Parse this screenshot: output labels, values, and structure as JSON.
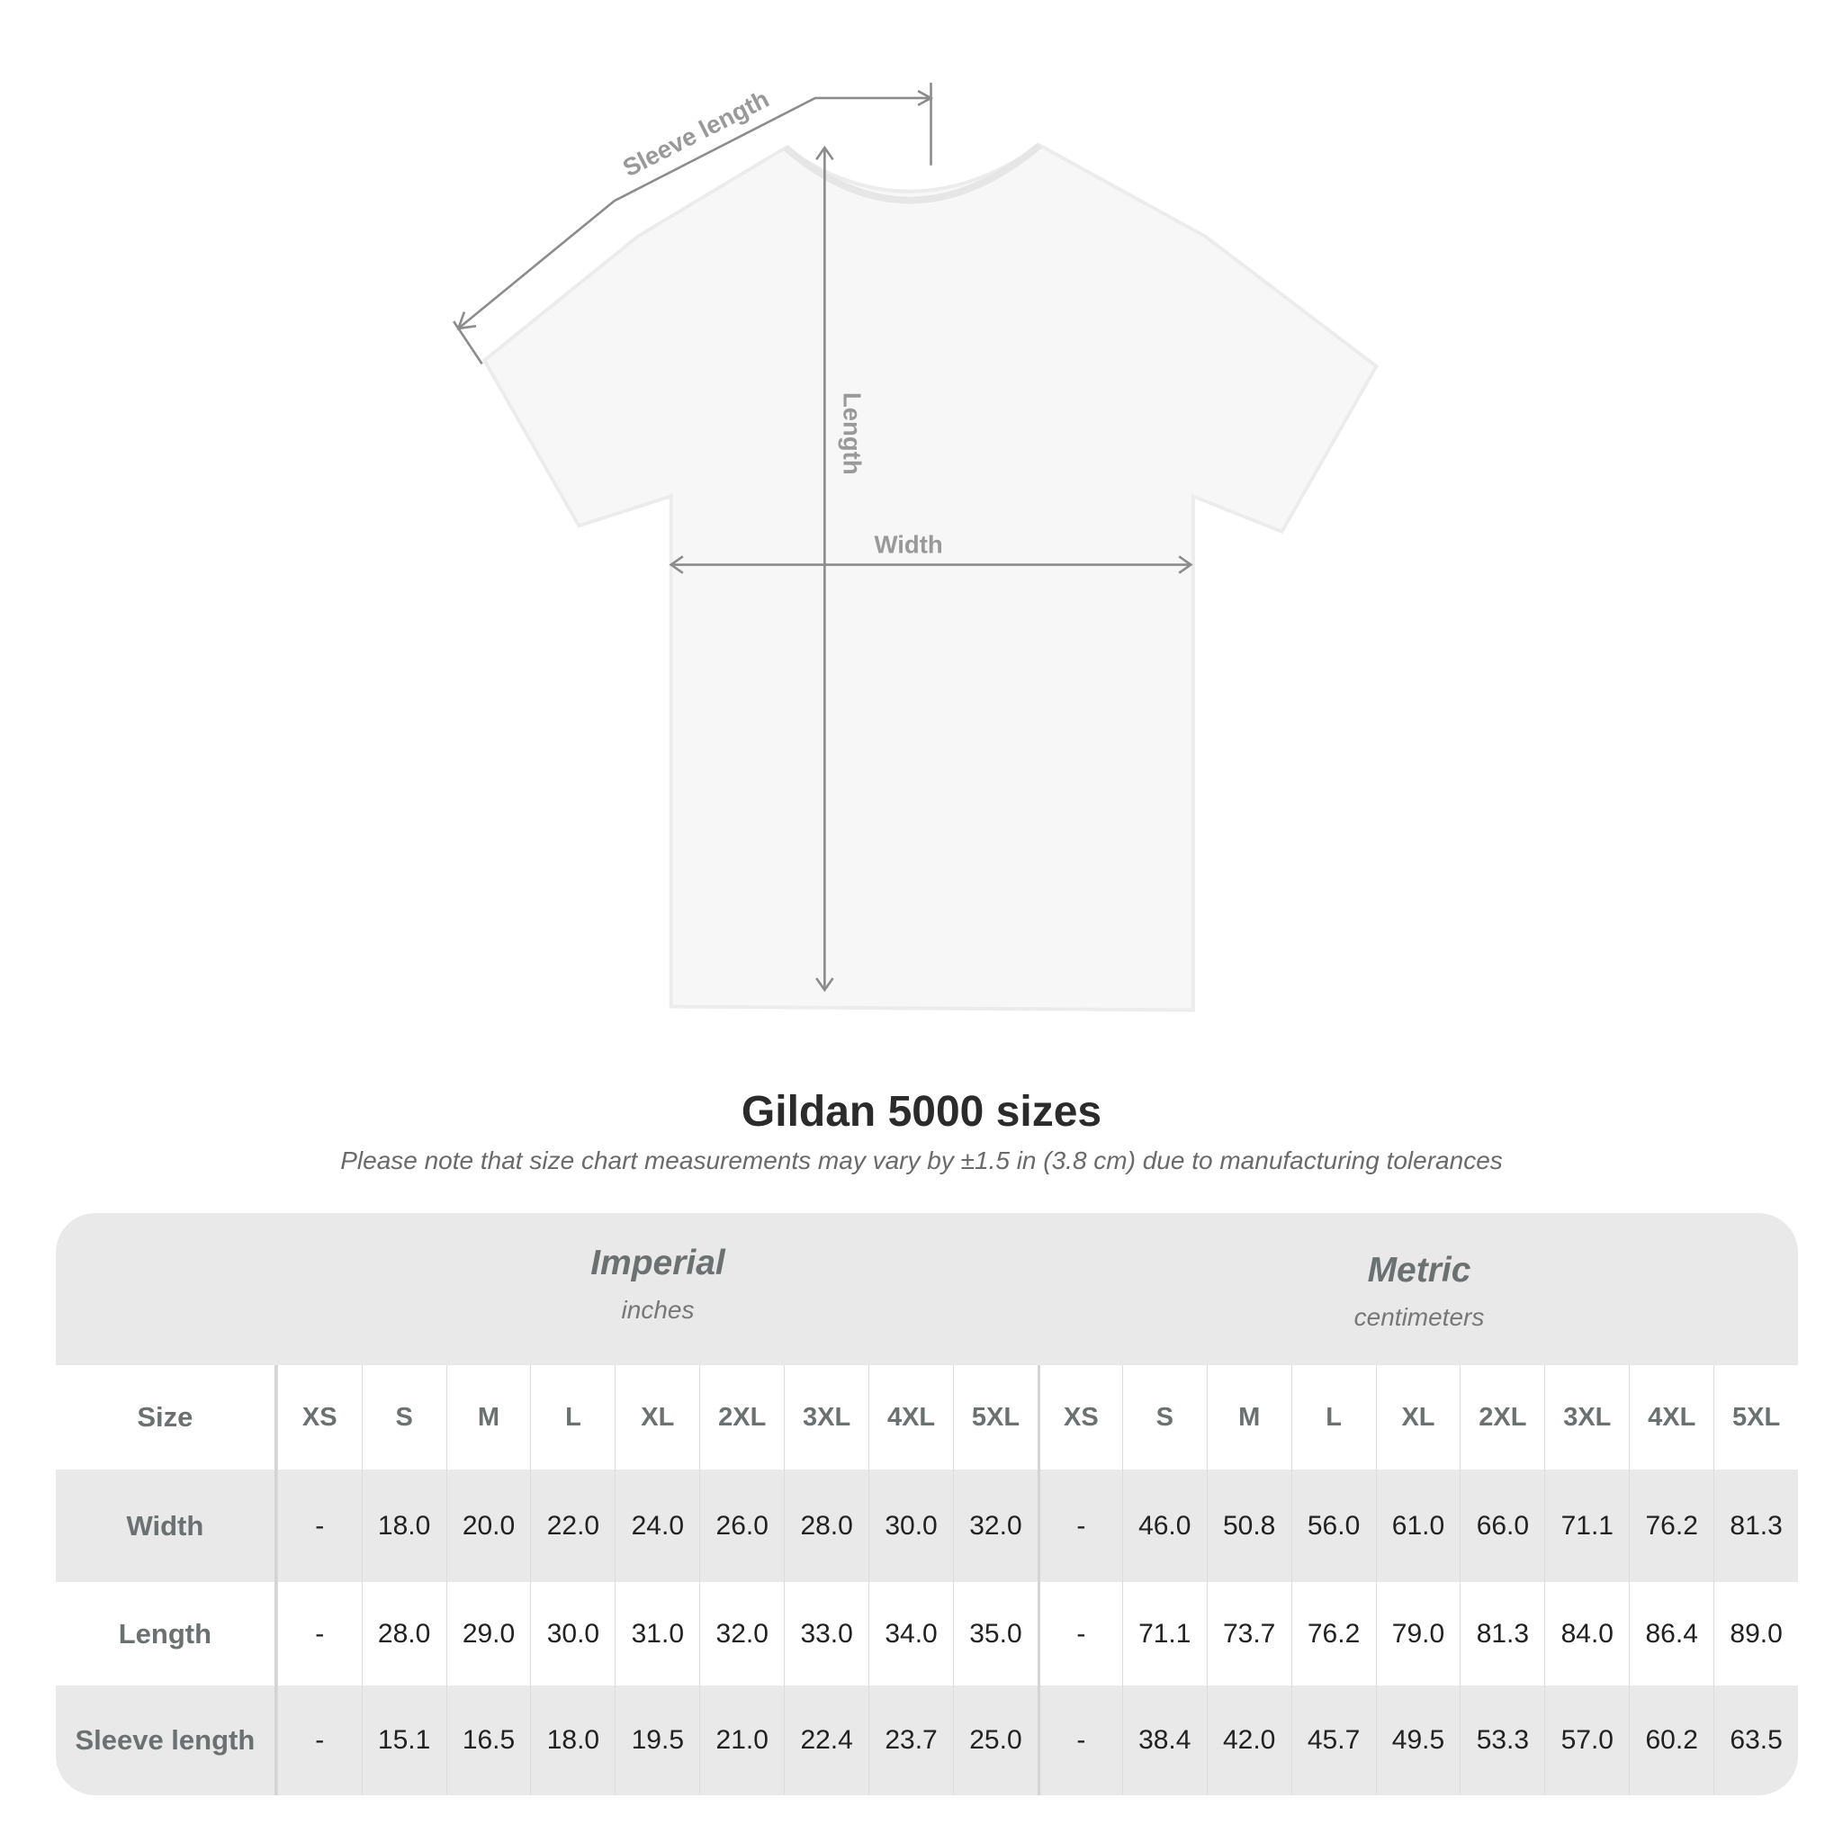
{
  "diagram": {
    "labels": {
      "sleeve": "Sleeve length",
      "length": "Length",
      "width": "Width"
    },
    "colors": {
      "shirt": "#f7f7f7",
      "lines": "#8c8c8c"
    }
  },
  "header": {
    "title": "Gildan 5000 sizes",
    "subtitle": "Please note that size chart measurements may vary by ±1.5 in (3.8 cm) due to manufacturing tolerances"
  },
  "table": {
    "imperial": {
      "name": "Imperial",
      "unit": "inches"
    },
    "metric": {
      "name": "Metric",
      "unit": "centimeters"
    },
    "size_label": "Size",
    "sizes": [
      "XS",
      "S",
      "M",
      "L",
      "XL",
      "2XL",
      "3XL",
      "4XL",
      "5XL"
    ],
    "rows": [
      {
        "label": "Width",
        "imperial": [
          "-",
          "18.0",
          "20.0",
          "22.0",
          "24.0",
          "26.0",
          "28.0",
          "30.0",
          "32.0"
        ],
        "metric": [
          "-",
          "46.0",
          "50.8",
          "56.0",
          "61.0",
          "66.0",
          "71.1",
          "76.2",
          "81.3"
        ]
      },
      {
        "label": "Length",
        "imperial": [
          "-",
          "28.0",
          "29.0",
          "30.0",
          "31.0",
          "32.0",
          "33.0",
          "34.0",
          "35.0"
        ],
        "metric": [
          "-",
          "71.1",
          "73.7",
          "76.2",
          "79.0",
          "81.3",
          "84.0",
          "86.4",
          "89.0"
        ]
      },
      {
        "label": "Sleeve length",
        "imperial": [
          "-",
          "15.1",
          "16.5",
          "18.0",
          "19.5",
          "21.0",
          "22.4",
          "23.7",
          "25.0"
        ],
        "metric": [
          "-",
          "38.4",
          "42.0",
          "45.7",
          "49.5",
          "53.3",
          "57.0",
          "60.2",
          "63.5"
        ]
      }
    ]
  }
}
